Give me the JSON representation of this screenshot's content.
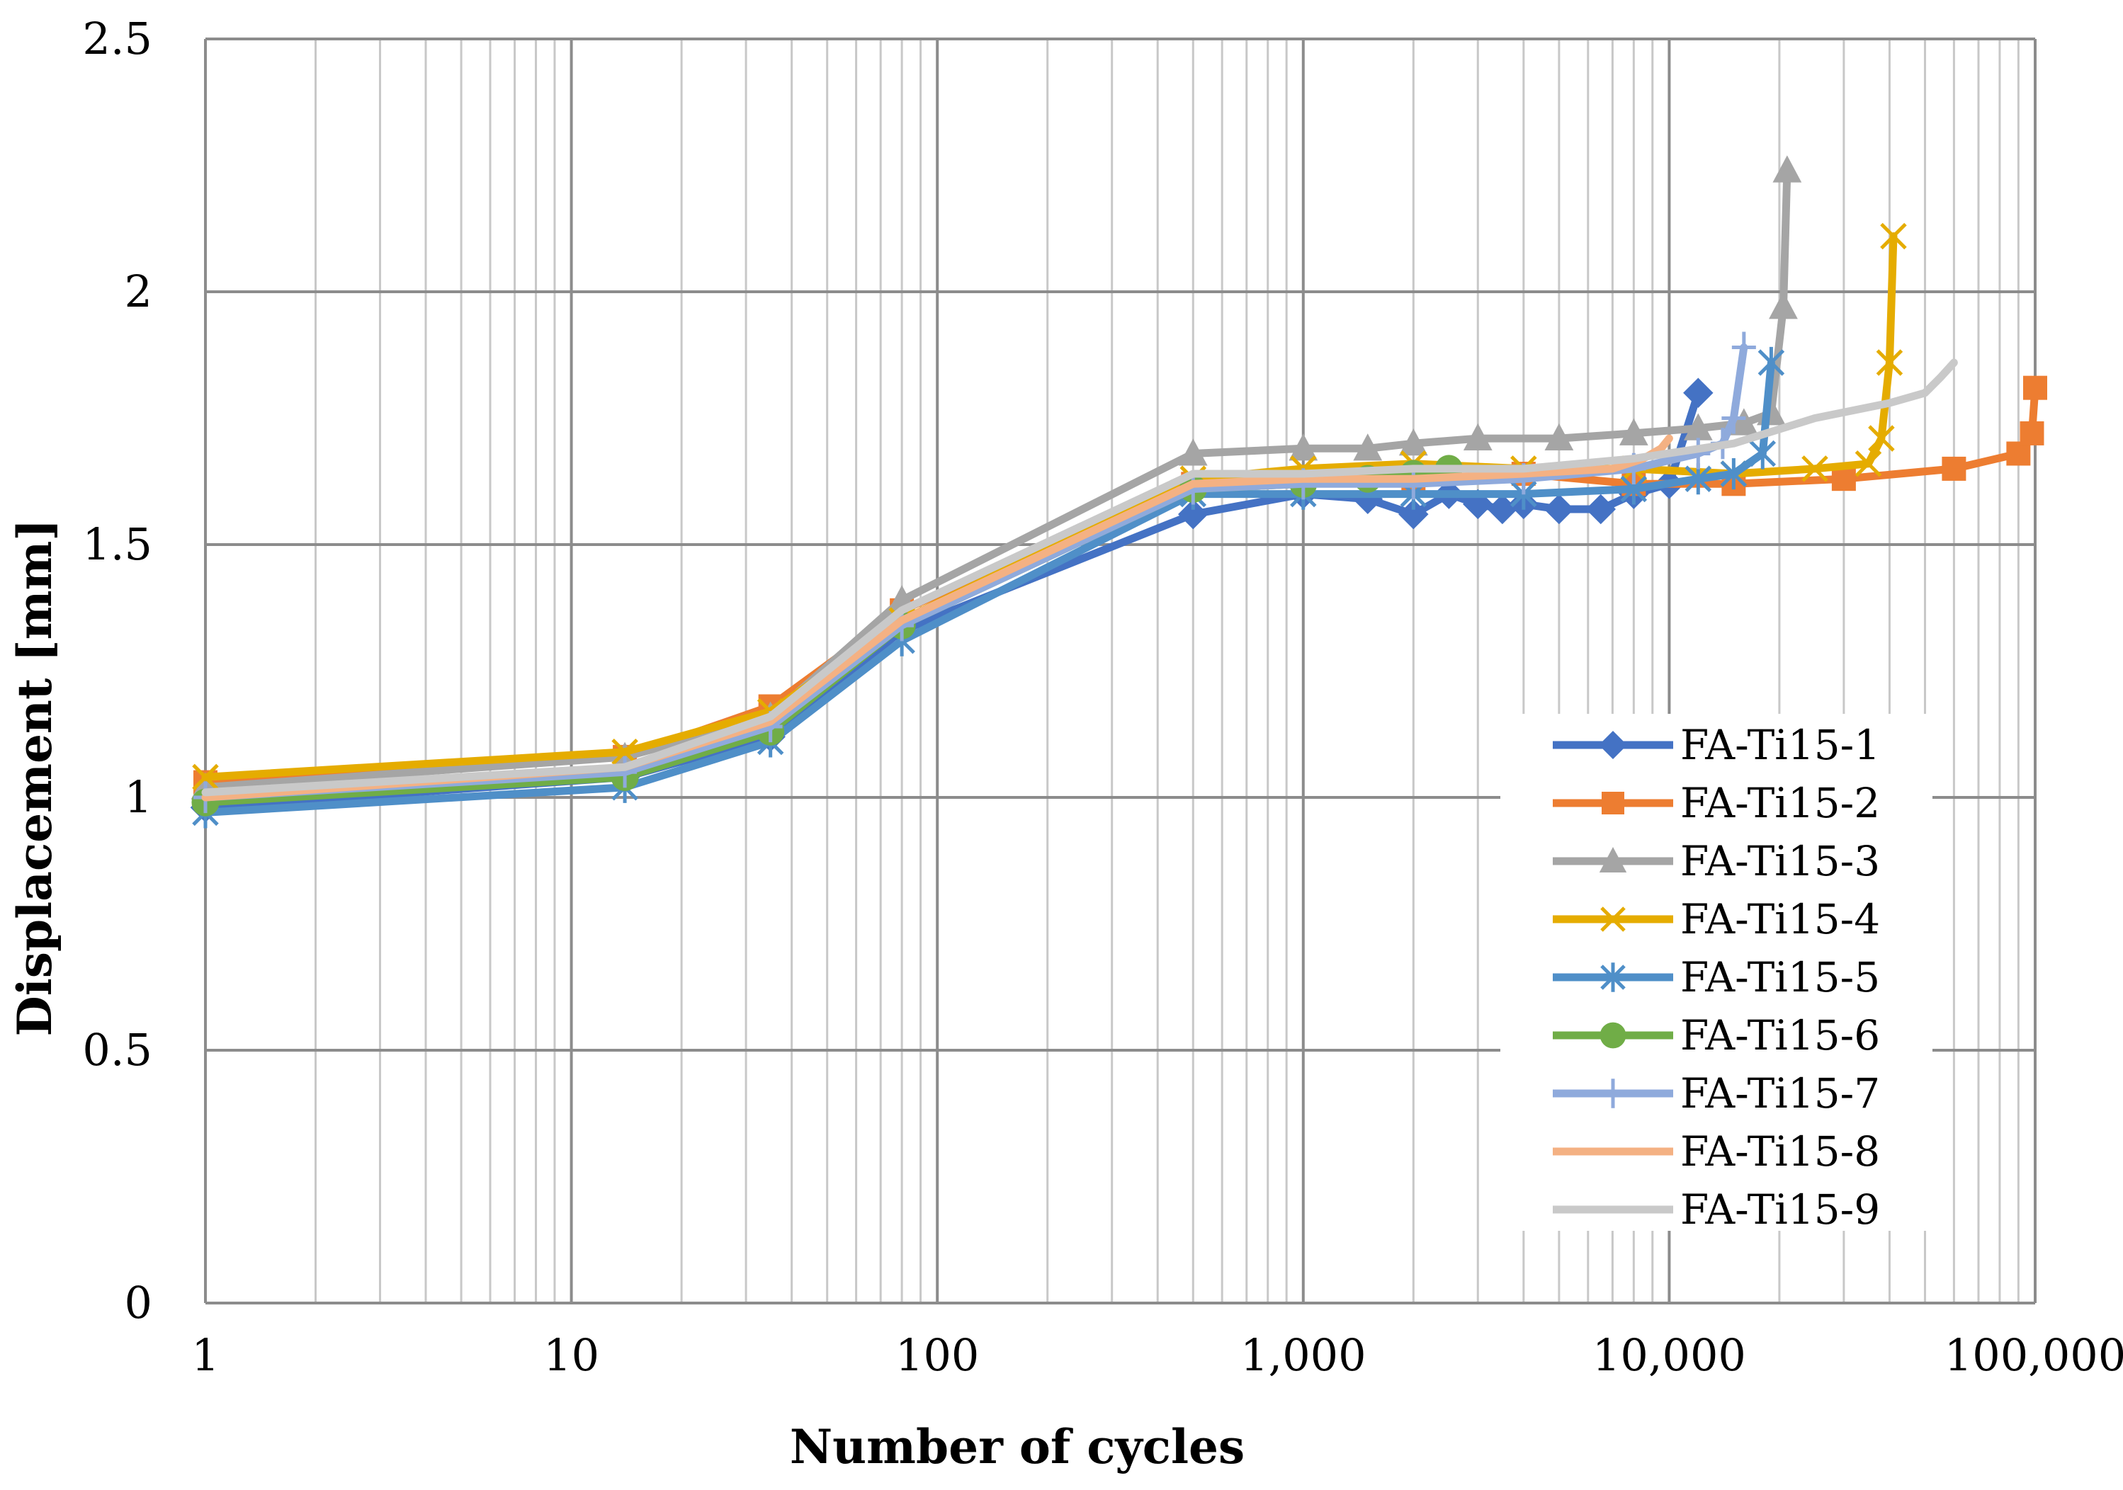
{
  "chart_data": {
    "type": "line",
    "title": "",
    "xlabel": "Number of cycles",
    "ylabel": "Displacement [mm]",
    "xscale": "log",
    "xlim": [
      1,
      100000
    ],
    "ylim": [
      0,
      2.5
    ],
    "x_ticks": [
      1,
      10,
      100,
      1000,
      10000,
      100000
    ],
    "x_tick_labels": [
      "1",
      "10",
      "100",
      "1,000",
      "10,000",
      "100,000"
    ],
    "y_ticks": [
      0,
      0.5,
      1,
      1.5,
      2,
      2.5
    ],
    "y_tick_labels": [
      "0",
      "0.5",
      "1",
      "1.5",
      "2",
      "2.5"
    ],
    "grid": true,
    "legend_position": "right",
    "series": [
      {
        "name": "FA-Ti15-1",
        "color": "#4472C4",
        "marker": "diamond",
        "x": [
          1,
          14,
          35,
          80,
          500,
          1000,
          1500,
          2000,
          2500,
          3000,
          3500,
          4000,
          5000,
          6500,
          8000,
          10000,
          12000
        ],
        "y": [
          0.98,
          1.04,
          1.12,
          1.33,
          1.56,
          1.6,
          1.59,
          1.56,
          1.6,
          1.58,
          1.57,
          1.58,
          1.57,
          1.57,
          1.6,
          1.62,
          1.8
        ]
      },
      {
        "name": "FA-Ti15-2",
        "color": "#ED7D31",
        "marker": "square",
        "x": [
          1,
          14,
          35,
          80,
          500,
          1000,
          2000,
          4000,
          8000,
          15000,
          30000,
          60000,
          90000,
          98000,
          100000
        ],
        "y": [
          1.03,
          1.08,
          1.18,
          1.37,
          1.62,
          1.63,
          1.63,
          1.64,
          1.62,
          1.62,
          1.63,
          1.65,
          1.68,
          1.72,
          1.81
        ]
      },
      {
        "name": "FA-Ti15-3",
        "color": "#A5A5A5",
        "marker": "triangle",
        "x": [
          1,
          14,
          35,
          80,
          500,
          1000,
          1500,
          2000,
          3000,
          5000,
          8000,
          12000,
          16000,
          19000,
          20500,
          21000
        ],
        "y": [
          1.02,
          1.08,
          1.16,
          1.39,
          1.68,
          1.69,
          1.69,
          1.7,
          1.71,
          1.71,
          1.72,
          1.73,
          1.74,
          1.76,
          1.97,
          2.24
        ]
      },
      {
        "name": "FA-Ti15-4",
        "color": "#E5AC00",
        "marker": "x",
        "x": [
          1,
          14,
          35,
          80,
          500,
          1000,
          2000,
          4000,
          8000,
          15000,
          25000,
          35000,
          38000,
          40000,
          41000
        ],
        "y": [
          1.04,
          1.09,
          1.17,
          1.35,
          1.63,
          1.65,
          1.66,
          1.65,
          1.65,
          1.64,
          1.65,
          1.66,
          1.71,
          1.86,
          2.11
        ]
      },
      {
        "name": "FA-Ti15-5",
        "color": "#4F8FC8",
        "marker": "star",
        "x": [
          1,
          14,
          35,
          80,
          500,
          1000,
          2000,
          4000,
          8000,
          12000,
          15000,
          18000,
          19000
        ],
        "y": [
          0.97,
          1.02,
          1.11,
          1.31,
          1.6,
          1.6,
          1.6,
          1.6,
          1.61,
          1.63,
          1.64,
          1.68,
          1.86
        ]
      },
      {
        "name": "FA-Ti15-6",
        "color": "#70AD47",
        "marker": "circle",
        "x": [
          1,
          14,
          35,
          80,
          500,
          1000,
          1500,
          2000,
          2500
        ],
        "y": [
          0.99,
          1.04,
          1.13,
          1.34,
          1.61,
          1.62,
          1.63,
          1.64,
          1.65
        ]
      },
      {
        "name": "FA-Ti15-7",
        "color": "#8FAADC",
        "marker": "plus",
        "x": [
          1,
          14,
          35,
          80,
          500,
          1000,
          2000,
          4000,
          8000,
          12000,
          14000,
          15000,
          16000
        ],
        "y": [
          1.0,
          1.05,
          1.14,
          1.34,
          1.61,
          1.62,
          1.62,
          1.63,
          1.65,
          1.68,
          1.7,
          1.75,
          1.89
        ]
      },
      {
        "name": "FA-Ti15-8",
        "color": "#F4B183",
        "marker": "none",
        "x": [
          1,
          14,
          35,
          80,
          500,
          1000,
          2000,
          4000,
          7000,
          8500,
          9500,
          10000
        ],
        "y": [
          1.0,
          1.06,
          1.15,
          1.35,
          1.62,
          1.63,
          1.63,
          1.64,
          1.65,
          1.67,
          1.69,
          1.71
        ]
      },
      {
        "name": "FA-Ti15-9",
        "color": "#C9C9C9",
        "marker": "none",
        "x": [
          1,
          14,
          35,
          80,
          500,
          1000,
          2000,
          4000,
          8000,
          15000,
          25000,
          40000,
          50000,
          55000,
          60000
        ],
        "y": [
          1.01,
          1.06,
          1.16,
          1.37,
          1.64,
          1.64,
          1.65,
          1.65,
          1.67,
          1.7,
          1.75,
          1.78,
          1.8,
          1.83,
          1.86
        ]
      }
    ]
  }
}
